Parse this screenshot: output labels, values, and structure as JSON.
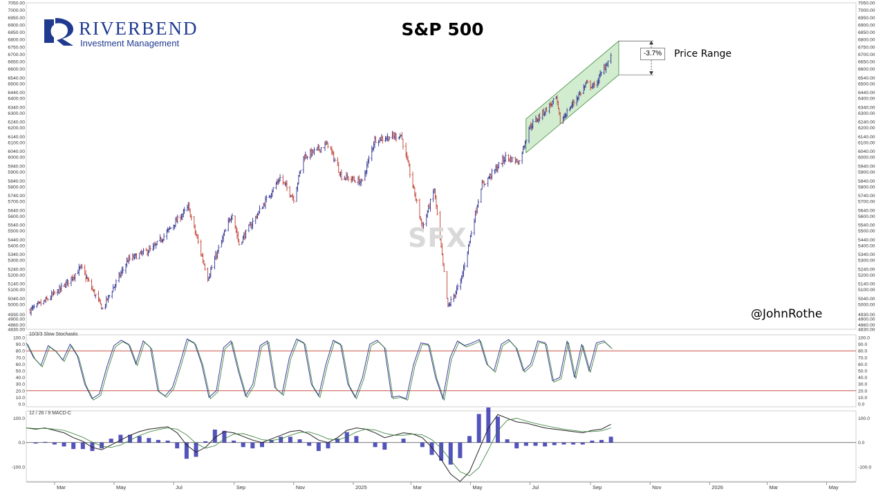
{
  "brand": {
    "name": "RIVERBEND",
    "tagline": "Investment Management",
    "colors": {
      "navy": "#1f3a8f"
    }
  },
  "handle": "@JohnRothe",
  "watermark": "SFX",
  "colors": {
    "up_bar": "#2b2f8f",
    "down_bar": "#c0392b",
    "channel_fill": "#c9e9c5",
    "channel_line": "#3d8a3d",
    "reference_lines": "#c0392b",
    "histogram": "#1a1aa6"
  },
  "chart_data": [
    {
      "type": "ohlc",
      "title": "S&P 500",
      "time_range": [
        "2024-02",
        "2026-05"
      ],
      "x_ticks": [
        "Mar",
        "May",
        "Jul",
        "Sep",
        "Nov",
        "2025",
        "Mar",
        "May",
        "Jul",
        "Sep",
        "Nov",
        "2026",
        "Mar",
        "May"
      ],
      "y_ticks": [
        "7050.00",
        "7000.00",
        "6950.00",
        "6900.00",
        "6850.00",
        "6800.00",
        "6750.00",
        "6700.00",
        "6650.00",
        "6600.00",
        "6540.00",
        "6500.00",
        "6440.00",
        "6400.00",
        "6340.00",
        "6300.00",
        "6240.00",
        "6200.00",
        "6140.00",
        "6100.00",
        "6040.00",
        "6000.00",
        "5940.00",
        "5900.00",
        "5840.00",
        "5800.00",
        "5740.00",
        "5700.00",
        "5640.00",
        "5600.00",
        "5540.00",
        "5500.00",
        "5440.00",
        "5400.00",
        "5340.00",
        "5300.00",
        "5240.00",
        "5200.00",
        "5140.00",
        "5100.00",
        "5040.00",
        "5000.00",
        "4930.00",
        "4900.00",
        "4860.00",
        "4830.00"
      ],
      "ylim": [
        4830,
        7050
      ],
      "approx_close_path": [
        [
          "2024-02-05",
          4960
        ],
        [
          "2024-02-20",
          5020
        ],
        [
          "2024-03-10",
          5120
        ],
        [
          "2024-03-28",
          5250
        ],
        [
          "2024-04-19",
          4970
        ],
        [
          "2024-05-15",
          5300
        ],
        [
          "2024-06-10",
          5380
        ],
        [
          "2024-07-16",
          5660
        ],
        [
          "2024-08-05",
          5180
        ],
        [
          "2024-08-30",
          5620
        ],
        [
          "2024-09-06",
          5410
        ],
        [
          "2024-10-18",
          5860
        ],
        [
          "2024-11-01",
          5720
        ],
        [
          "2024-11-11",
          6000
        ],
        [
          "2024-12-06",
          6090
        ],
        [
          "2024-12-20",
          5870
        ],
        [
          "2025-01-10",
          5830
        ],
        [
          "2025-01-23",
          6120
        ],
        [
          "2025-02-19",
          6150
        ],
        [
          "2025-03-13",
          5520
        ],
        [
          "2025-03-25",
          5780
        ],
        [
          "2025-04-08",
          4980
        ],
        [
          "2025-04-21",
          5150
        ],
        [
          "2025-05-12",
          5800
        ],
        [
          "2025-06-06",
          6000
        ],
        [
          "2025-06-20",
          5970
        ],
        [
          "2025-06-30",
          6200
        ],
        [
          "2025-07-28",
          6400
        ],
        [
          "2025-08-01",
          6240
        ],
        [
          "2025-08-28",
          6500
        ],
        [
          "2025-09-05",
          6480
        ],
        [
          "2025-09-22",
          6690
        ]
      ],
      "price_channel": {
        "start": [
          "2025-06-27",
          6030,
          6260
        ],
        "end": [
          "2025-09-30",
          6560,
          6790
        ],
        "annotation": "-3.7%",
        "label": "Price Range"
      }
    },
    {
      "type": "line",
      "title": "10/3/3 Slow Stochastic",
      "ylim": [
        0,
        100
      ],
      "y_ticks": [
        "100.0",
        "90.0",
        "80.0",
        "70.0",
        "60.0",
        "50.0",
        "40.0",
        "30.0",
        "20.0",
        "10.0",
        "0.0"
      ],
      "reference_lines": [
        80,
        20
      ],
      "series": [
        {
          "values": [
            92,
            70,
            58,
            88,
            80,
            66,
            90,
            72,
            30,
            8,
            15,
            55,
            88,
            96,
            90,
            60,
            95,
            85,
            20,
            12,
            25,
            60,
            98,
            92,
            60,
            10,
            20,
            85,
            95,
            50,
            12,
            30,
            88,
            95,
            25,
            15,
            70,
            98,
            92,
            30,
            12,
            60,
            96,
            90,
            30,
            10,
            40,
            90,
            96,
            85,
            10,
            12,
            8,
            60,
            92,
            90,
            40,
            8,
            70,
            95,
            88,
            92,
            97,
            60,
            50,
            90,
            97,
            85,
            50,
            60,
            95,
            92,
            35,
            40,
            95,
            40,
            90,
            50,
            92,
            95,
            85
          ]
        }
      ]
    },
    {
      "type": "line",
      "title": "12 / 26 / 9 MACD-C",
      "ylim": [
        -160,
        130
      ],
      "y_ticks": [
        "100.0",
        "0.0",
        "-100.0"
      ],
      "series": [
        {
          "values": [
            60,
            55,
            60,
            50,
            40,
            20,
            5,
            -20,
            -30,
            -10,
            10,
            30,
            45,
            55,
            60,
            65,
            40,
            -10,
            -40,
            -20,
            20,
            45,
            40,
            25,
            10,
            0,
            15,
            30,
            45,
            50,
            35,
            10,
            0,
            20,
            50,
            60,
            55,
            40,
            20,
            30,
            40,
            35,
            20,
            -20,
            -70,
            -130,
            -160,
            -120,
            -30,
            60,
            115,
            100,
            85,
            80,
            70,
            60,
            55,
            50,
            45,
            40,
            50,
            55,
            75
          ]
        }
      ]
    }
  ]
}
